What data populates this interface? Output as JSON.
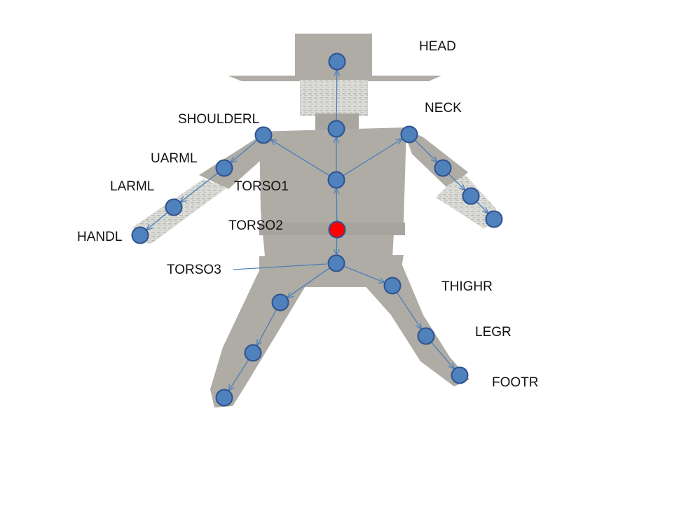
{
  "colors": {
    "background": "#ffffff",
    "body": "#aeaca4",
    "body_shade": "#9c9a92",
    "texture": "#d8d8d4",
    "joint_fill": "#4f81bd",
    "joint_stroke": "#2f528f",
    "root_fill": "#ff0000",
    "bone": "#4a7ebb",
    "label": "#111111"
  },
  "labels": {
    "head": "HEAD",
    "neck": "NECK",
    "shoulder_l": "SHOULDERL",
    "uarm_l": "UARML",
    "larm_l": "LARML",
    "hand_l": "HANDL",
    "torso1": "TORSO1",
    "torso2": "TORSO2",
    "torso3": "TORSO3",
    "thigh_r": "THIGHR",
    "leg_r": "LEGR",
    "foot_r": "FOOTR"
  },
  "joints": [
    {
      "id": "head",
      "root": false
    },
    {
      "id": "neck",
      "root": false
    },
    {
      "id": "torso1",
      "root": false
    },
    {
      "id": "torso2",
      "root": true
    },
    {
      "id": "torso3",
      "root": false
    },
    {
      "id": "shoulder_l",
      "root": false
    },
    {
      "id": "uarm_l",
      "root": false
    },
    {
      "id": "larm_l",
      "root": false
    },
    {
      "id": "hand_l",
      "root": false
    },
    {
      "id": "shoulder_r",
      "root": false
    },
    {
      "id": "uarm_r",
      "root": false
    },
    {
      "id": "larm_r",
      "root": false
    },
    {
      "id": "hand_r",
      "root": false
    },
    {
      "id": "thigh_l",
      "root": false
    },
    {
      "id": "leg_l",
      "root": false
    },
    {
      "id": "knee_l",
      "root": false
    },
    {
      "id": "foot_l",
      "root": false
    },
    {
      "id": "thigh_r",
      "root": false
    },
    {
      "id": "leg_r",
      "root": false
    },
    {
      "id": "foot_r",
      "root": false
    }
  ],
  "bones": [
    [
      "torso2",
      "torso1"
    ],
    [
      "torso1",
      "neck"
    ],
    [
      "neck",
      "head"
    ],
    [
      "torso1",
      "shoulder_l"
    ],
    [
      "torso1",
      "shoulder_r"
    ],
    [
      "shoulder_l",
      "uarm_l"
    ],
    [
      "uarm_l",
      "larm_l"
    ],
    [
      "larm_l",
      "hand_l"
    ],
    [
      "shoulder_r",
      "uarm_r"
    ],
    [
      "uarm_r",
      "larm_r"
    ],
    [
      "larm_r",
      "hand_r"
    ],
    [
      "torso2",
      "torso3"
    ],
    [
      "torso3",
      "thigh_l"
    ],
    [
      "thigh_l",
      "leg_l"
    ],
    [
      "leg_l",
      "foot_l"
    ],
    [
      "torso3",
      "thigh_r"
    ],
    [
      "thigh_r",
      "leg_r"
    ],
    [
      "leg_r",
      "foot_r"
    ]
  ]
}
